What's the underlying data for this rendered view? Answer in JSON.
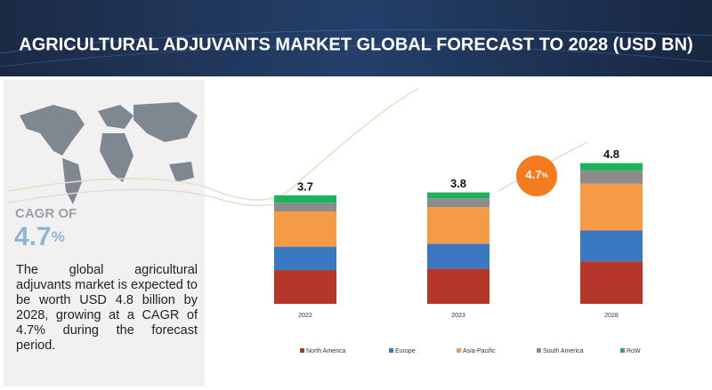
{
  "chart_data": {
    "type": "stacked-bar",
    "title": "AGRICULTURAL ADJUVANTS MARKET GLOBAL FORECAST TO 2028 (USD BN)",
    "categories": [
      "2022",
      "2023",
      "2028"
    ],
    "series": [
      {
        "name": "North America",
        "color": "#b5372c",
        "values": [
          1.15,
          1.2,
          1.45
        ]
      },
      {
        "name": "Europe",
        "color": "#3b78c2",
        "values": [
          0.8,
          0.85,
          1.05
        ]
      },
      {
        "name": "Asia-Pacific",
        "color": "#f59a45",
        "values": [
          1.2,
          1.25,
          1.6
        ]
      },
      {
        "name": "South America",
        "color": "#8c8c8c",
        "values": [
          0.3,
          0.3,
          0.45
        ]
      },
      {
        "name": "RoW",
        "color": "#1db35a",
        "values": [
          0.25,
          0.2,
          0.25
        ]
      }
    ],
    "totals": [
      3.7,
      3.8,
      4.8
    ],
    "cagr": "4.7",
    "cagr_unit": "%",
    "legend_position": "bottom"
  },
  "sidebar": {
    "cagr_heading": "CAGR OF",
    "cagr": "4.7",
    "cagr_unit": "%",
    "description": "The global agricultural adjuvants market is expected to be worth USD 4.8 billion by 2028, growing at a CAGR of 4.7% during the forecast period."
  }
}
